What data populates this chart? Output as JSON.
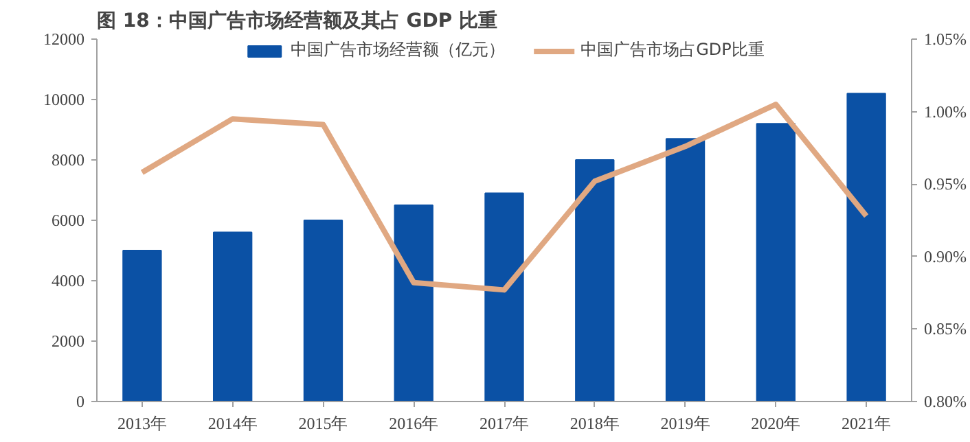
{
  "chart_data": {
    "type": "bar",
    "title": "图 18：中国广告市场经营额及其占 GDP 比重",
    "categories": [
      "2013年",
      "2014年",
      "2015年",
      "2016年",
      "2017年",
      "2018年",
      "2019年",
      "2020年",
      "2021年"
    ],
    "series": [
      {
        "name": "中国广告市场经营额（亿元）",
        "color": "#0b51a5",
        "values": [
          5000,
          5600,
          6000,
          6500,
          6900,
          8000,
          8700,
          9200,
          10200
        ]
      },
      {
        "name": "中国广告市场占GDP比重",
        "type": "line",
        "axis": "y2",
        "color": "#e0a882",
        "values": [
          0.958,
          0.995,
          0.991,
          0.882,
          0.877,
          0.952,
          0.976,
          1.005,
          0.928
        ]
      }
    ],
    "ylim": [
      0,
      12000
    ],
    "yticks": [
      0,
      2000,
      4000,
      6000,
      8000,
      10000,
      12000
    ],
    "y2lim": [
      0.8,
      1.05
    ],
    "y2ticks": [
      {
        "value": 0.8,
        "label": "0.80%"
      },
      {
        "value": 0.85,
        "label": "0.85%"
      },
      {
        "value": 0.9,
        "label": "0.90%"
      },
      {
        "value": 0.95,
        "label": "0.95%"
      },
      {
        "value": 1.0,
        "label": "1.00%"
      },
      {
        "value": 1.05,
        "label": "1.05%"
      }
    ],
    "grid": false,
    "legend": "top",
    "marker": "none",
    "line_style": "solid"
  }
}
